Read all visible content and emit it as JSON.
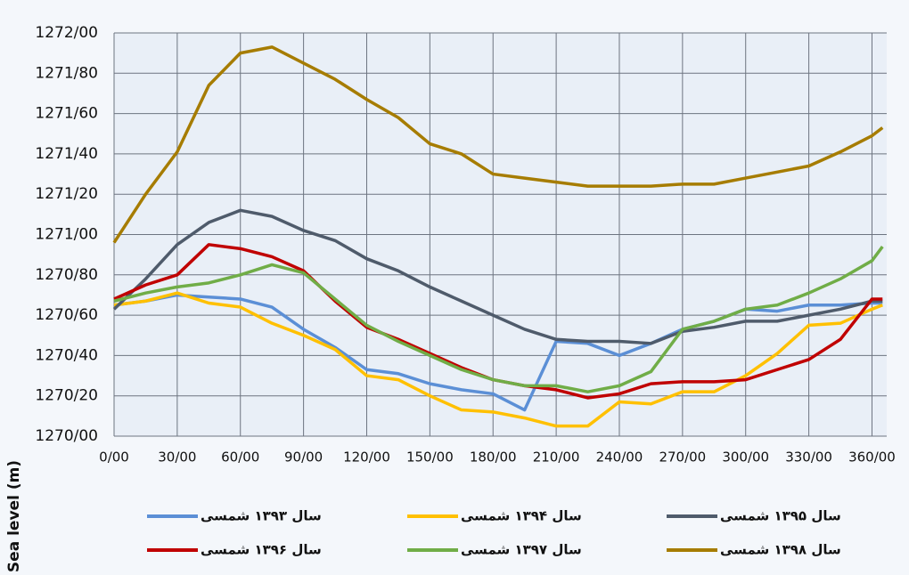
{
  "chart_data": {
    "type": "line",
    "y_label": "Sea level (m)",
    "x": [
      0,
      15,
      30,
      45,
      60,
      75,
      90,
      105,
      120,
      135,
      150,
      165,
      180,
      195,
      210,
      225,
      240,
      255,
      270,
      285,
      300,
      315,
      330,
      345,
      360,
      365
    ],
    "xlim": [
      0,
      367
    ],
    "xticks": [
      {
        "value": 0,
        "label": "0/00"
      },
      {
        "value": 30,
        "label": "30/00"
      },
      {
        "value": 60,
        "label": "60/00"
      },
      {
        "value": 90,
        "label": "90/00"
      },
      {
        "value": 120,
        "label": "120/00"
      },
      {
        "value": 150,
        "label": "150/00"
      },
      {
        "value": 180,
        "label": "180/00"
      },
      {
        "value": 210,
        "label": "210/00"
      },
      {
        "value": 240,
        "label": "240/00"
      },
      {
        "value": 270,
        "label": "270/00"
      },
      {
        "value": 300,
        "label": "300/00"
      },
      {
        "value": 330,
        "label": "330/00"
      },
      {
        "value": 360,
        "label": "360/00"
      }
    ],
    "ylim": [
      1270,
      1272
    ],
    "yticks": [
      {
        "value": 1270,
        "label": "1270/00"
      },
      {
        "value": 1270.2,
        "label": "1270/20"
      },
      {
        "value": 1270.4,
        "label": "1270/40"
      },
      {
        "value": 1270.6,
        "label": "1270/60"
      },
      {
        "value": 1270.8,
        "label": "1270/80"
      },
      {
        "value": 1271,
        "label": "1271/00"
      },
      {
        "value": 1271.2,
        "label": "1271/20"
      },
      {
        "value": 1271.4,
        "label": "1271/40"
      },
      {
        "value": 1271.6,
        "label": "1271/60"
      },
      {
        "value": 1271.8,
        "label": "1271/80"
      },
      {
        "value": 1272,
        "label": "1272/00"
      }
    ],
    "grid": true,
    "series": [
      {
        "name": "سال ۱۳۹۳ شمسی",
        "color": "#5b8fd6",
        "values": [
          1270.65,
          1270.67,
          1270.7,
          1270.69,
          1270.68,
          1270.64,
          1270.53,
          1270.44,
          1270.33,
          1270.31,
          1270.26,
          1270.23,
          1270.21,
          1270.13,
          1270.47,
          1270.46,
          1270.4,
          1270.46,
          1270.53,
          1270.57,
          1270.63,
          1270.62,
          1270.65,
          1270.65,
          1270.66,
          1270.66
        ]
      },
      {
        "name": "سال ۱۳۹۴ شمسی",
        "color": "#ffc000",
        "values": [
          1270.65,
          1270.67,
          1270.71,
          1270.66,
          1270.64,
          1270.56,
          1270.5,
          1270.43,
          1270.3,
          1270.28,
          1270.2,
          1270.13,
          1270.12,
          1270.09,
          1270.05,
          1270.05,
          1270.17,
          1270.16,
          1270.22,
          1270.22,
          1270.3,
          1270.41,
          1270.55,
          1270.56,
          1270.63,
          1270.65
        ]
      },
      {
        "name": "سال ۱۳۹۵ شمسی",
        "color": "#4f5b6b",
        "values": [
          1270.63,
          1270.78,
          1270.95,
          1271.06,
          1271.12,
          1271.09,
          1271.02,
          1270.97,
          1270.88,
          1270.82,
          1270.74,
          1270.67,
          1270.6,
          1270.53,
          1270.48,
          1270.47,
          1270.47,
          1270.46,
          1270.52,
          1270.54,
          1270.57,
          1270.57,
          1270.6,
          1270.63,
          1270.67,
          1270.67
        ]
      },
      {
        "name": "سال ۱۳۹۶ شمسی",
        "color": "#c00000",
        "values": [
          1270.68,
          1270.75,
          1270.8,
          1270.95,
          1270.93,
          1270.89,
          1270.82,
          1270.67,
          1270.54,
          1270.48,
          1270.41,
          1270.34,
          1270.28,
          1270.25,
          1270.23,
          1270.19,
          1270.21,
          1270.26,
          1270.27,
          1270.27,
          1270.28,
          1270.33,
          1270.38,
          1270.48,
          1270.68,
          1270.68
        ]
      },
      {
        "name": "سال ۱۳۹۷ شمسی",
        "color": "#70ad47",
        "values": [
          1270.67,
          1270.71,
          1270.74,
          1270.76,
          1270.8,
          1270.85,
          1270.81,
          1270.68,
          1270.55,
          1270.47,
          1270.4,
          1270.33,
          1270.28,
          1270.25,
          1270.25,
          1270.22,
          1270.25,
          1270.32,
          1270.53,
          1270.57,
          1270.63,
          1270.65,
          1270.71,
          1270.78,
          1270.87,
          1270.94
        ]
      },
      {
        "name": "سال ۱۳۹۸ شمسی",
        "color": "#a67c00",
        "values": [
          1270.96,
          1271.2,
          1271.41,
          1271.74,
          1271.9,
          1271.93,
          1271.85,
          1271.77,
          1271.67,
          1271.58,
          1271.45,
          1271.4,
          1271.3,
          1271.28,
          1271.26,
          1271.24,
          1271.24,
          1271.24,
          1271.25,
          1271.25,
          1271.28,
          1271.31,
          1271.34,
          1271.41,
          1271.49,
          1271.53
        ]
      }
    ]
  }
}
